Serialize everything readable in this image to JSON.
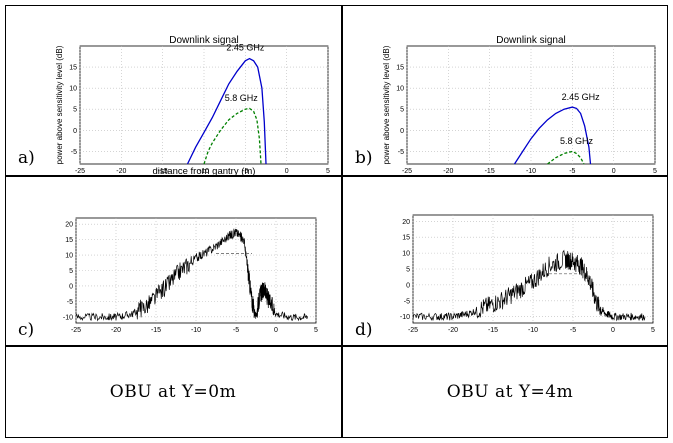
{
  "panels": {
    "a": {
      "label": "a)",
      "chart_data": {
        "type": "line",
        "title": "Downlink signal",
        "xlabel": "distance from gantry (m)",
        "ylabel": "power above sensitivity level (dB)",
        "xlim": [
          -25,
          5
        ],
        "ylim": [
          -8,
          20
        ],
        "xticks": [
          "-25",
          "-20",
          "-15",
          "-10",
          "-5",
          "0",
          "5"
        ],
        "yticks": [
          "-5",
          "0",
          "5",
          "10",
          "15"
        ],
        "grid": true,
        "annotations": [
          "2.45 GHz",
          "5.8 GHz"
        ],
        "series": [
          {
            "name": "2.45 GHz",
            "style": "solid",
            "color": "#0000cc",
            "x": [
              -12,
              -11,
              -10,
              -9,
              -8,
              -7,
              -6,
              -5,
              -4.5,
              -4,
              -3.5,
              -3,
              -2.7,
              -2.5
            ],
            "y": [
              -8,
              -4,
              -0.5,
              3,
              7,
              11,
              14,
              16.5,
              17,
              16.5,
              15,
              10,
              2,
              -8
            ]
          },
          {
            "name": "5.8 GHz",
            "style": "dashed",
            "color": "#008000",
            "x": [
              -10,
              -9.5,
              -9,
              -8,
              -7,
              -6,
              -5,
              -4.5,
              -4,
              -3.6,
              -3.3,
              -3.1
            ],
            "y": [
              -8,
              -5,
              -3,
              0,
              2.5,
              4,
              5,
              5.2,
              4.5,
              2.5,
              -2,
              -8
            ]
          }
        ]
      }
    },
    "b": {
      "label": "b)",
      "chart_data": {
        "type": "line",
        "title": "Downlink signal",
        "xlabel": "",
        "ylabel": "power above sensitivity level (dB)",
        "xlim": [
          -25,
          5
        ],
        "ylim": [
          -8,
          20
        ],
        "xticks": [
          "-25",
          "-20",
          "-15",
          "-10",
          "-5",
          "0",
          "5"
        ],
        "yticks": [
          "-5",
          "0",
          "5",
          "10",
          "15"
        ],
        "grid": true,
        "annotations": [
          "2.45 GHz",
          "5.8 GHz"
        ],
        "series": [
          {
            "name": "2.45 GHz",
            "style": "solid",
            "color": "#0000cc",
            "x": [
              -12,
              -11,
              -10,
              -9,
              -8,
              -7,
              -6,
              -5,
              -4.5,
              -4,
              -3.5,
              -3,
              -2.8
            ],
            "y": [
              -8,
              -5,
              -2,
              0.5,
              2.5,
              4,
              5,
              5.5,
              5.2,
              4,
              1,
              -4,
              -8
            ]
          },
          {
            "name": "5.8 GHz",
            "style": "dashed",
            "color": "#008000",
            "x": [
              -8,
              -7,
              -6,
              -5,
              -4.5,
              -4,
              -3.6
            ],
            "y": [
              -8,
              -6.5,
              -5.5,
              -5,
              -5.5,
              -6.5,
              -8
            ]
          }
        ]
      }
    },
    "c": {
      "label": "c)",
      "chart_data": {
        "type": "line",
        "xlim": [
          -25,
          5
        ],
        "ylim": [
          -12,
          22
        ],
        "xticks": [
          "-25",
          "-20",
          "-15",
          "-10",
          "-5",
          "0",
          "5"
        ],
        "yticks": [
          "-10",
          "-5",
          "0",
          "5",
          "10",
          "15",
          "20"
        ],
        "grid": true,
        "series": [
          {
            "style": "solid",
            "color": "#000000",
            "x": [
              -25,
              -22,
              -20,
              -18,
              -16,
              -14,
              -12,
              -10,
              -8,
              -6,
              -5,
              -4,
              -3.5,
              -3,
              -2.5,
              -2,
              -1.5,
              -1,
              0,
              2,
              4
            ],
            "y": [
              -10,
              -10,
              -10,
              -9,
              -6,
              -1,
              5,
              9,
              12,
              16,
              17.5,
              15,
              5,
              -5,
              -10,
              -3,
              -1,
              -4,
              -9,
              -10,
              -10
            ]
          },
          {
            "style": "dashed",
            "color": "#555555",
            "x": [
              -7.5,
              -3
            ],
            "y": [
              10.5,
              10.5
            ]
          }
        ]
      }
    },
    "d": {
      "label": "d)",
      "chart_data": {
        "type": "line",
        "xlim": [
          -25,
          5
        ],
        "ylim": [
          -12,
          22
        ],
        "xticks": [
          "-25",
          "-20",
          "-15",
          "-10",
          "-5",
          "0",
          "5"
        ],
        "yticks": [
          "-10",
          "-5",
          "0",
          "5",
          "10",
          "15",
          "20"
        ],
        "grid": true,
        "series": [
          {
            "style": "solid",
            "color": "#000000",
            "x": [
              -25,
              -22,
              -20,
              -18,
              -16,
              -14,
              -12,
              -10,
              -8,
              -6,
              -5,
              -4,
              -3,
              -2,
              -1,
              0,
              2,
              4
            ],
            "y": [
              -10,
              -10,
              -10,
              -9,
              -7,
              -5,
              -2,
              1,
              6,
              8,
              7.5,
              6,
              2,
              -6,
              -9,
              -10,
              -10,
              -10
            ]
          },
          {
            "style": "dashed",
            "color": "#555555",
            "x": [
              -8,
              -4
            ],
            "y": [
              3.5,
              3.5
            ]
          }
        ]
      }
    }
  },
  "captions": {
    "left": "OBU at Y=0m",
    "right": "OBU at Y=4m"
  }
}
